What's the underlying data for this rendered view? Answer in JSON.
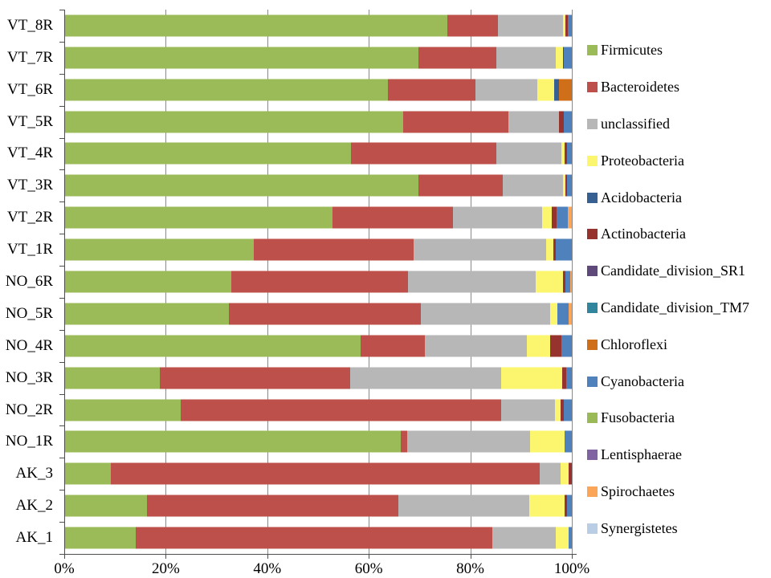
{
  "chart_data": {
    "type": "bar",
    "variant": "horizontal-stacked-100pct",
    "title": "",
    "xlabel": "",
    "ylabel": "",
    "xlim": [
      0,
      100
    ],
    "x_ticks": [
      "0%",
      "20%",
      "40%",
      "60%",
      "80%",
      "100%"
    ],
    "x_tick_values": [
      0,
      20,
      40,
      60,
      80,
      100
    ],
    "grid": true,
    "legend_position": "right",
    "categories": [
      "VT_8R",
      "VT_7R",
      "VT_6R",
      "VT_5R",
      "VT_4R",
      "VT_3R",
      "VT_2R",
      "VT_1R",
      "NO_6R",
      "NO_5R",
      "NO_4R",
      "NO_3R",
      "NO_2R",
      "NO_1R",
      "AK_3",
      "AK_2",
      "AK_1"
    ],
    "series": [
      {
        "name": "Firmicutes",
        "color": "#9BBB59",
        "values": [
          75.4,
          69.7,
          63.8,
          66.8,
          56.5,
          69.7,
          52.9,
          37.4,
          32.9,
          32.5,
          58.4,
          18.9,
          23.0,
          66.3,
          9.2,
          16.3,
          14.1
        ]
      },
      {
        "name": "Bacteroidetes",
        "color": "#BE504B",
        "values": [
          10.0,
          15.4,
          17.2,
          20.7,
          28.6,
          16.7,
          23.7,
          31.4,
          34.9,
          37.7,
          12.6,
          37.4,
          63.0,
          1.2,
          84.4,
          49.5,
          70.3
        ]
      },
      {
        "name": "unclassified",
        "color": "#B7B7B7",
        "values": [
          12.8,
          11.7,
          12.2,
          9.9,
          12.9,
          11.8,
          17.6,
          26.1,
          25.1,
          25.6,
          20.1,
          29.7,
          10.7,
          24.3,
          4.2,
          25.8,
          12.4
        ]
      },
      {
        "name": "Proteobacteria",
        "color": "#FBF66D",
        "values": [
          0.5,
          1.4,
          3.3,
          0.0,
          0.6,
          0.5,
          1.9,
          1.4,
          5.3,
          1.4,
          4.7,
          12.1,
          1.1,
          6.7,
          1.6,
          7.0,
          2.6
        ]
      },
      {
        "name": "Acidobacteria",
        "color": "#376092",
        "values": [
          0.0,
          0.0,
          1.0,
          0.0,
          0.0,
          0.0,
          0.0,
          0.0,
          0.0,
          0.0,
          0.0,
          0.0,
          0.0,
          0.0,
          0.0,
          0.0,
          0.0
        ]
      },
      {
        "name": "Actinobacteria",
        "color": "#96332E",
        "values": [
          0.5,
          0.3,
          0.0,
          1.1,
          0.4,
          0.3,
          0.9,
          0.5,
          0.5,
          0.0,
          2.2,
          0.8,
          0.6,
          0.0,
          0.6,
          0.5,
          0.0
        ]
      },
      {
        "name": "Candidate_division_SR1",
        "color": "#5F497A",
        "values": [
          0.0,
          0.0,
          0.0,
          0.0,
          0.0,
          0.0,
          0.0,
          0.0,
          0.0,
          0.0,
          0.0,
          0.0,
          0.0,
          0.0,
          0.0,
          0.0,
          0.0
        ]
      },
      {
        "name": "Candidate_division_TM7",
        "color": "#31859C",
        "values": [
          0.0,
          0.0,
          0.0,
          0.0,
          0.0,
          0.0,
          0.0,
          0.0,
          0.0,
          0.0,
          0.0,
          0.0,
          0.0,
          0.0,
          0.0,
          0.0,
          0.0
        ]
      },
      {
        "name": "Chloroflexi",
        "color": "#D06F1A",
        "values": [
          0.0,
          0.0,
          2.5,
          0.0,
          0.0,
          0.0,
          0.0,
          0.0,
          0.0,
          0.0,
          0.0,
          0.0,
          0.0,
          0.0,
          0.0,
          0.0,
          0.0
        ]
      },
      {
        "name": "Cyanobacteria",
        "color": "#4F81BD",
        "values": [
          0.8,
          1.5,
          0.0,
          1.5,
          1.0,
          1.0,
          2.2,
          3.2,
          1.0,
          2.2,
          2.0,
          1.1,
          1.6,
          1.5,
          0.0,
          0.9,
          0.6
        ]
      },
      {
        "name": "Fusobacteria",
        "color": "#9ABA58",
        "values": [
          0.0,
          0.0,
          0.0,
          0.0,
          0.0,
          0.0,
          0.0,
          0.0,
          0.0,
          0.0,
          0.0,
          0.0,
          0.0,
          0.0,
          0.0,
          0.0,
          0.0
        ]
      },
      {
        "name": "Lentisphaerae",
        "color": "#8064A2",
        "values": [
          0.0,
          0.0,
          0.0,
          0.0,
          0.0,
          0.0,
          0.0,
          0.0,
          0.0,
          0.0,
          0.0,
          0.0,
          0.0,
          0.0,
          0.0,
          0.0,
          0.0
        ]
      },
      {
        "name": "Spirochaetes",
        "color": "#FAA557",
        "values": [
          0.0,
          0.0,
          0.0,
          0.0,
          0.0,
          0.0,
          0.8,
          0.0,
          0.3,
          0.6,
          0.0,
          0.0,
          0.0,
          0.0,
          0.0,
          0.0,
          0.0
        ]
      },
      {
        "name": "Synergistetes",
        "color": "#B9CDE5",
        "values": [
          0.0,
          0.0,
          0.0,
          0.0,
          0.0,
          0.0,
          0.0,
          0.0,
          0.0,
          0.0,
          0.0,
          0.0,
          0.0,
          0.0,
          0.0,
          0.0,
          0.0
        ]
      }
    ]
  }
}
